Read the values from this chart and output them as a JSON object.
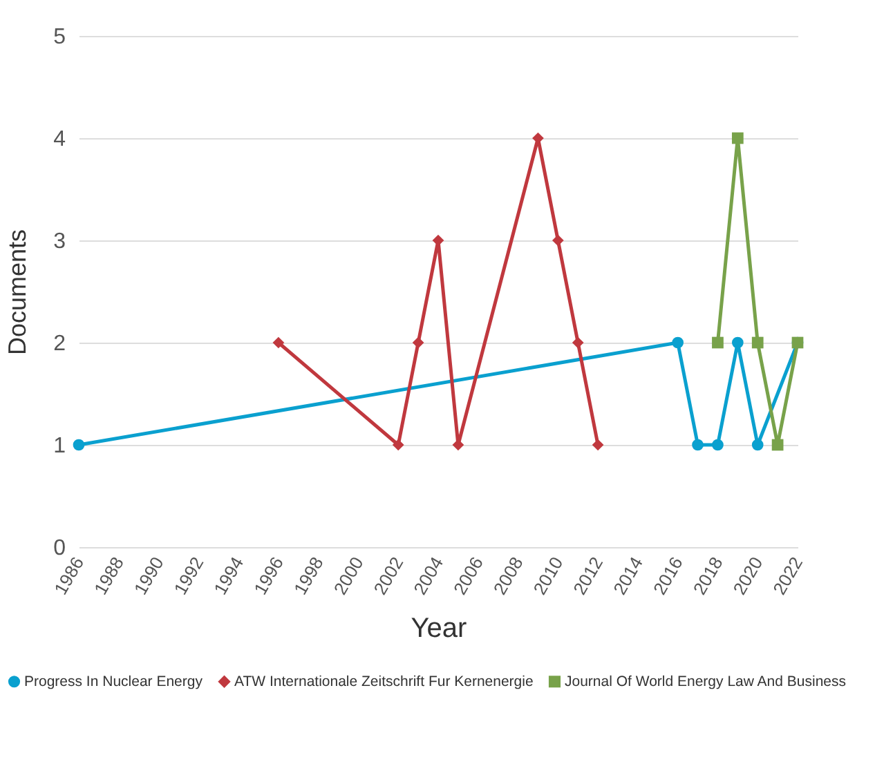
{
  "chart_data": {
    "type": "line",
    "xlabel": "Year",
    "ylabel": "Documents",
    "xlim": [
      1986,
      2022
    ],
    "xticks": [
      1986,
      1988,
      1990,
      1992,
      1994,
      1996,
      1998,
      2000,
      2002,
      2004,
      2006,
      2008,
      2010,
      2012,
      2014,
      2016,
      2018,
      2020,
      2022
    ],
    "ylim": [
      0,
      5.0
    ],
    "yticks": [
      0,
      1,
      2,
      3,
      4,
      5
    ],
    "grid": "y",
    "legend": "bottom",
    "line_style": "solid",
    "series": [
      {
        "name": "Progress In Nuclear Energy",
        "color": "#0aa0cf",
        "marker": "circle",
        "x": [
          1986,
          2016,
          2017,
          2018,
          2019,
          2020,
          2022
        ],
        "values": [
          1,
          2,
          1,
          1,
          2,
          1,
          2
        ]
      },
      {
        "name": "ATW Internationale Zeitschrift Fur Kernenergie",
        "color": "#c0383e",
        "marker": "diamond",
        "x": [
          1996,
          2002,
          2003,
          2004,
          2005,
          2009,
          2010,
          2011,
          2012
        ],
        "values": [
          2,
          1,
          2,
          3,
          1,
          4,
          3,
          2,
          1
        ]
      },
      {
        "name": "Journal Of World Energy Law And Business",
        "color": "#78a24a",
        "marker": "square",
        "x": [
          2018,
          2019,
          2020,
          2021,
          2022
        ],
        "values": [
          2,
          4,
          2,
          1,
          2
        ]
      }
    ]
  }
}
